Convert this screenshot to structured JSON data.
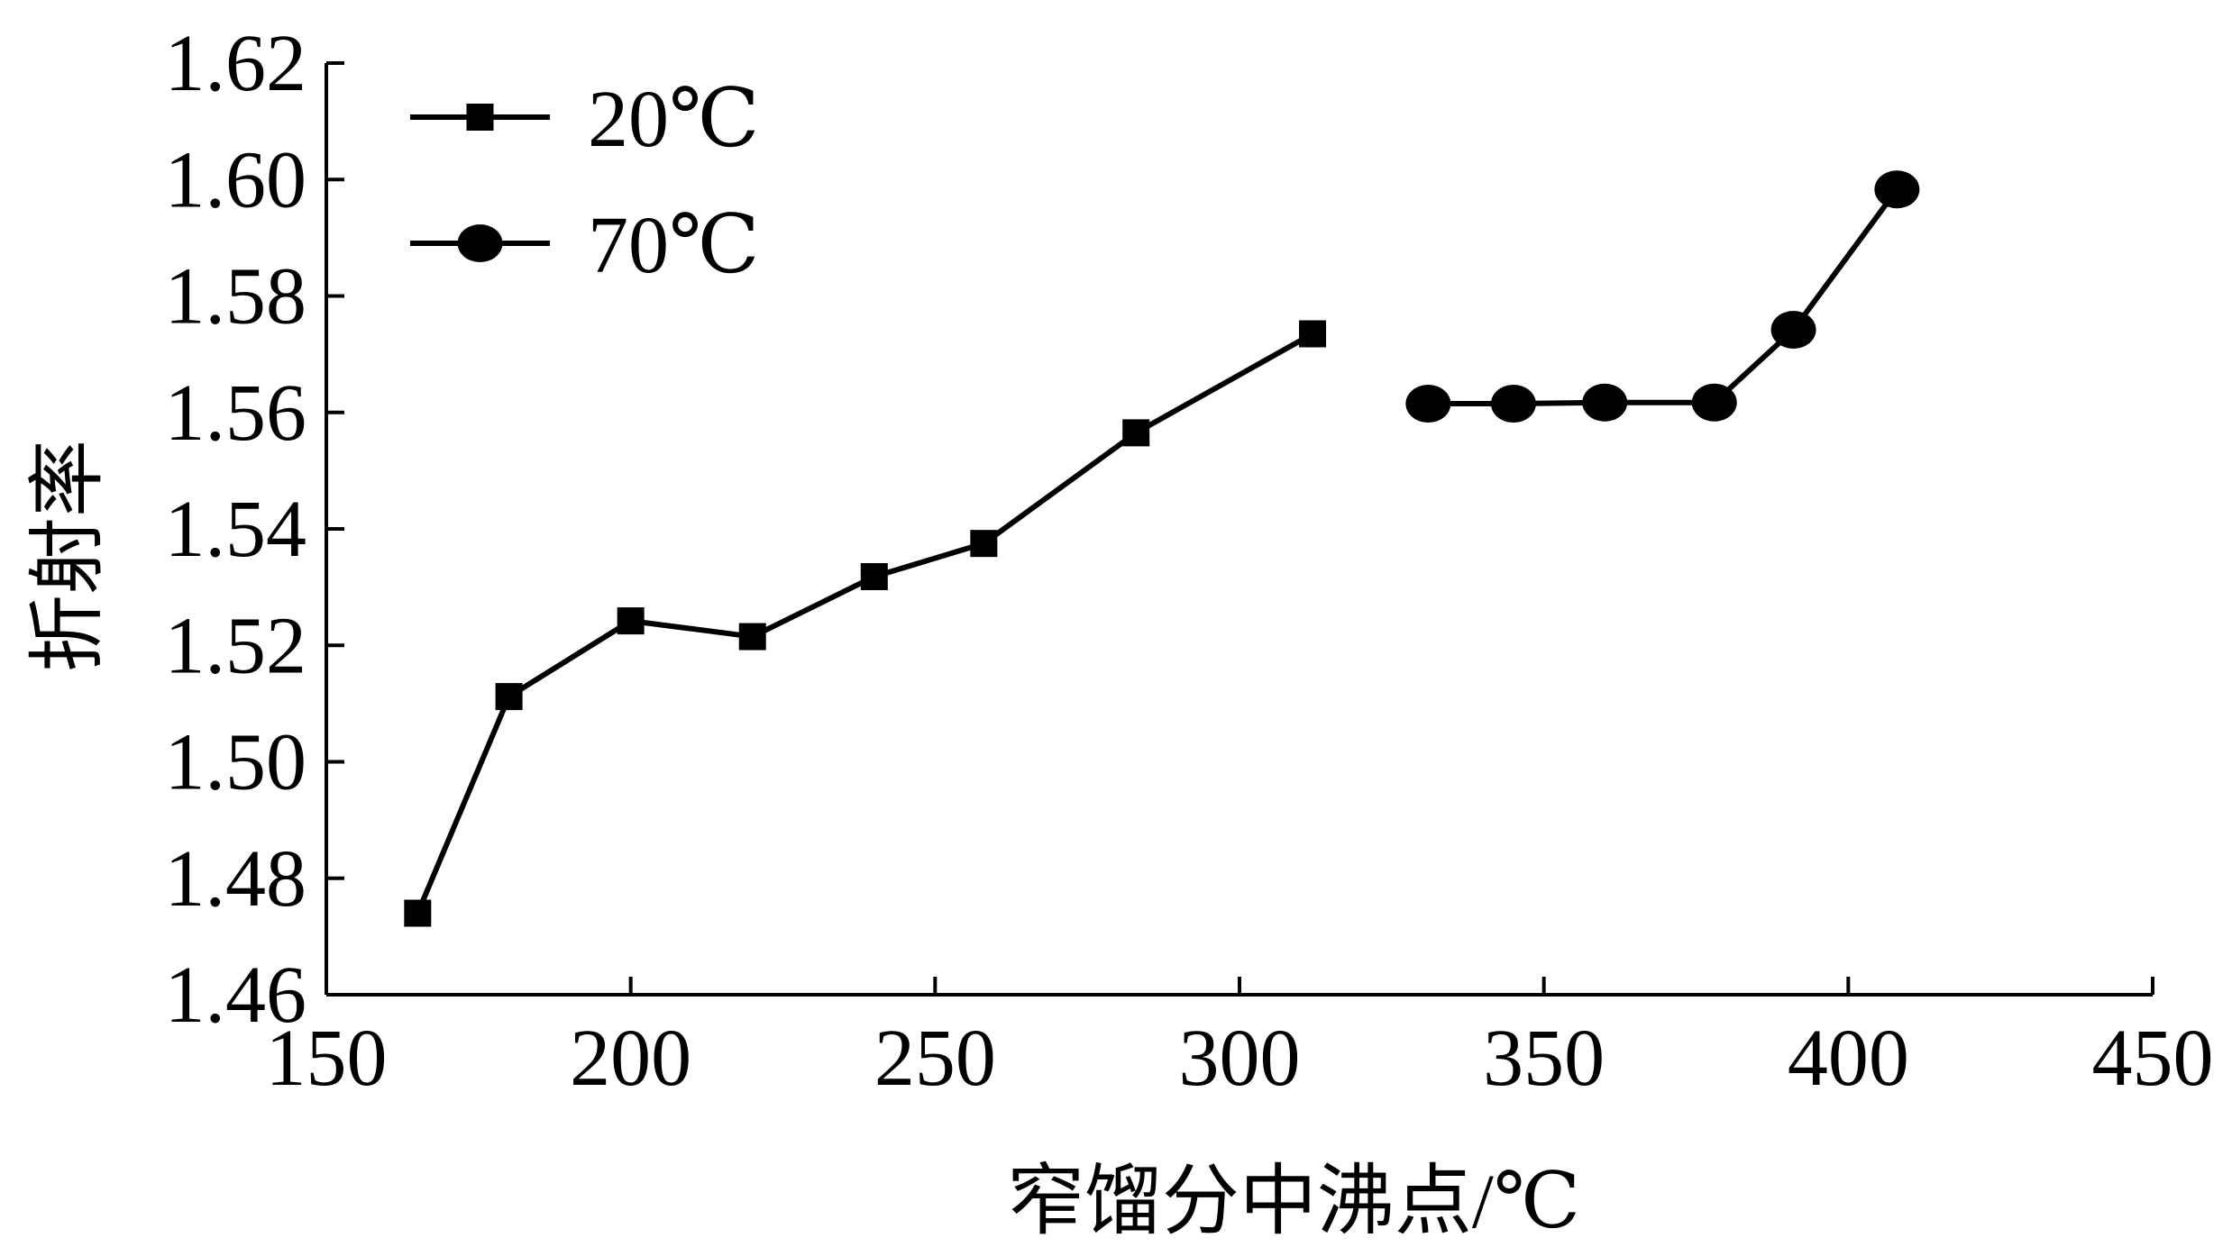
{
  "chart_data": {
    "type": "line",
    "xlabel": "窄馏分中沸点/℃",
    "ylabel": "折射率",
    "xlim": [
      150,
      450
    ],
    "ylim": [
      1.46,
      1.62
    ],
    "xticks": [
      150,
      200,
      250,
      300,
      350,
      400,
      450
    ],
    "yticks": [
      1.46,
      1.48,
      1.5,
      1.52,
      1.54,
      1.56,
      1.58,
      1.6,
      1.62
    ],
    "ytick_labels": [
      "1.46",
      "1.48",
      "1.50",
      "1.52",
      "1.54",
      "1.56",
      "1.58",
      "1.60",
      "1.62"
    ],
    "grid": false,
    "legend_position": "top-left",
    "series": [
      {
        "name": "20℃",
        "marker": "square",
        "x": [
          165,
          180,
          200,
          220,
          240,
          258,
          283,
          312
        ],
        "y": [
          1.474,
          1.5112,
          1.5242,
          1.5215,
          1.5318,
          1.5375,
          1.5565,
          1.5735
        ]
      },
      {
        "name": "70℃",
        "marker": "circle",
        "x": [
          331,
          345,
          360,
          378,
          391,
          408
        ],
        "y": [
          1.5615,
          1.5615,
          1.5617,
          1.5617,
          1.5742,
          1.5983
        ]
      }
    ],
    "color": "#000000"
  }
}
